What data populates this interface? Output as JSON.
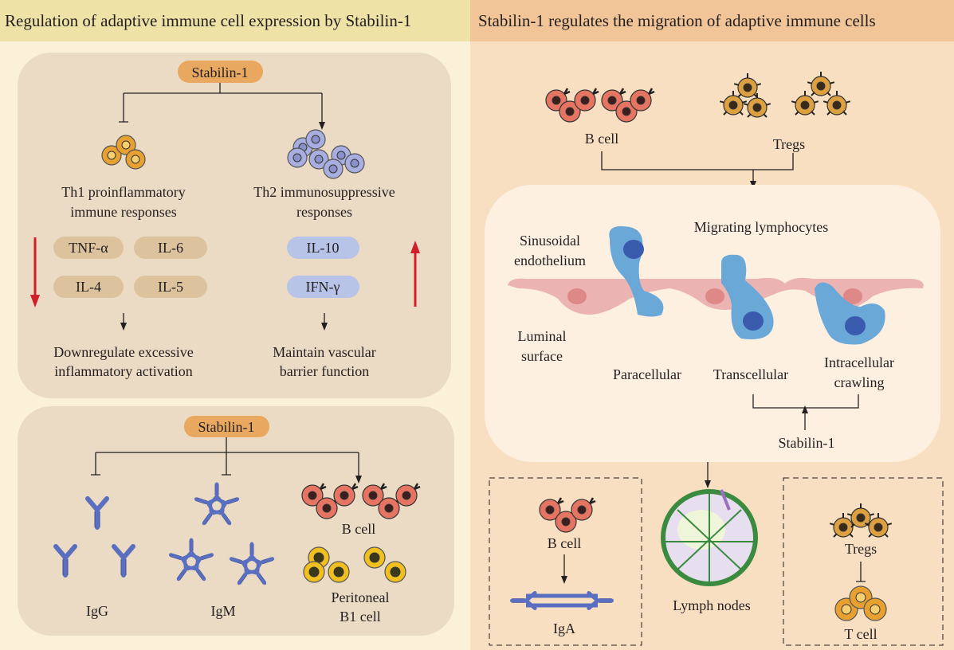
{
  "left": {
    "title": "Regulation of adaptive immune cell expression by Stabilin-1",
    "top_box": {
      "stabilin": "Stabilin-1",
      "th1_line1": "Th1 proinflammatory",
      "th1_line2": "immune responses",
      "th2_line1": "Th2 immunosuppressive",
      "th2_line2": "responses",
      "th1_cytokines": [
        "TNF-α",
        "IL-6",
        "IL-4",
        "IL-5"
      ],
      "th2_cytokines": [
        "IL-10",
        "IFN-γ"
      ],
      "outcome_left_1": "Downregulate excessive",
      "outcome_left_2": "inflammatory activation",
      "outcome_right_1": "Maintain vascular",
      "outcome_right_2": "barrier function"
    },
    "bottom_box": {
      "stabilin": "Stabilin-1",
      "igg": "IgG",
      "igm": "IgM",
      "b_cell": "B cell",
      "peritoneal_1": "Peritoneal",
      "peritoneal_2": "B1 cell"
    }
  },
  "right": {
    "title": "Stabilin-1 regulates the migration of adaptive immune cells",
    "b_cell": "B cell",
    "tregs": "Tregs",
    "migrating": "Migrating lymphocytes",
    "sinusoidal_1": "Sinusoidal",
    "sinusoidal_2": "endothelium",
    "luminal_1": "Luminal",
    "luminal_2": "surface",
    "paracellular": "Paracellular",
    "transcellular": "Transcellular",
    "intracellular_1": "Intracellular",
    "intracellular_2": "crawling",
    "stabilin": "Stabilin-1",
    "lymph_nodes": "Lymph nodes",
    "b_cell_2": "B cell",
    "iga": "IgA",
    "tregs_2": "Tregs",
    "t_cell": "T cell"
  },
  "colors": {
    "left_header": "#efe2a6",
    "left_bg": "#fbf1d9",
    "left_box": "#ebdbc4",
    "right_header": "#f1c598",
    "right_bg": "#f9dfc1",
    "right_box": "#fdf0e1",
    "stabilin_pill": "#e9a860",
    "red_arrow": "#d11f2a",
    "b_cell": "#e57562",
    "treg": "#dca040",
    "th2_cell": "#a9aee0",
    "antibody": "#5a6fc0",
    "lymphocyte": "#6aa8d8",
    "endothelium": "#ecb3b3",
    "lymph_node": "#3a8a40"
  }
}
